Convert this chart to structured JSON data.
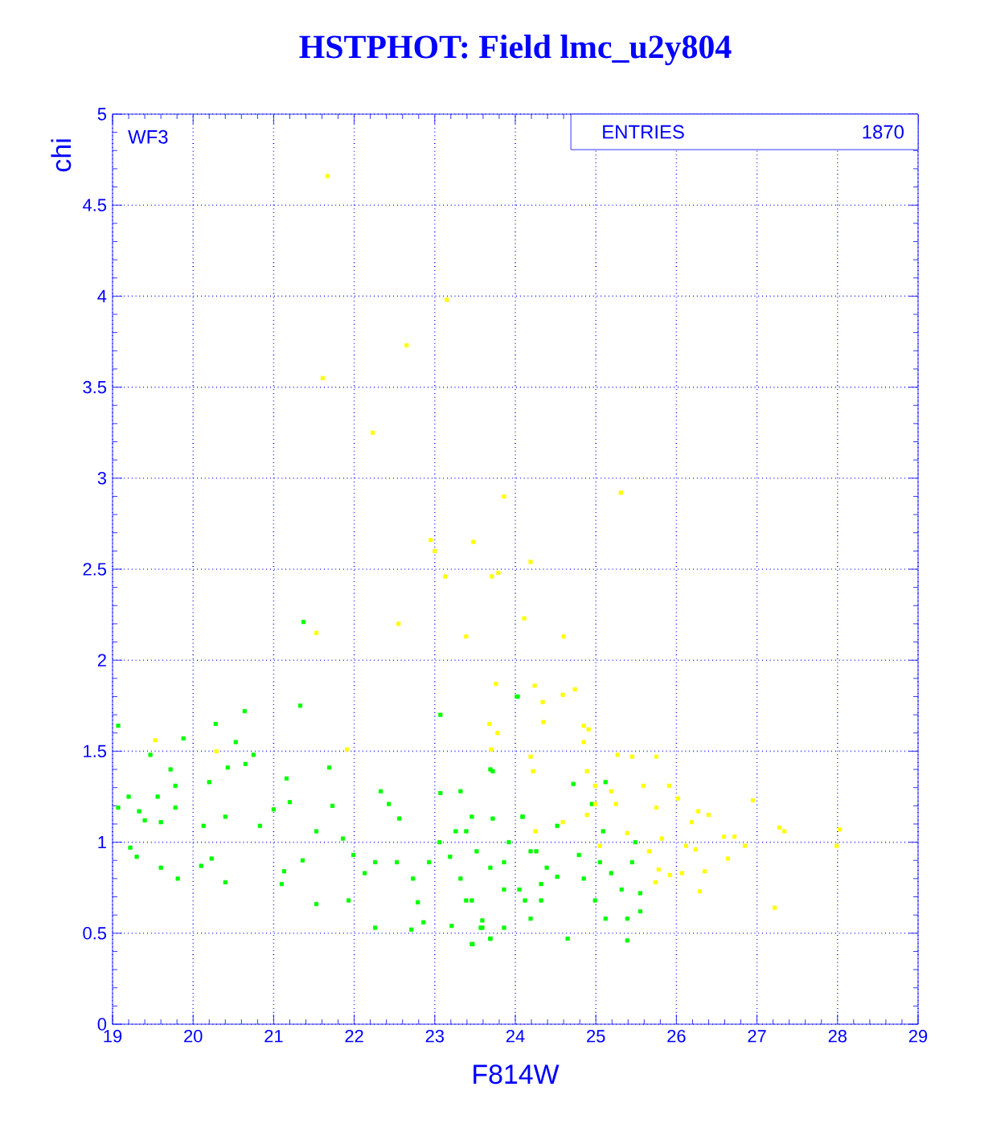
{
  "chart_data": {
    "type": "scatter",
    "title": "HSTPHOT: Field lmc_u2y804",
    "xlabel": "F814W",
    "ylabel": "chi",
    "annotations": [
      "WF3",
      "ENTRIES",
      "1870"
    ],
    "xlim": [
      19,
      29
    ],
    "ylim": [
      0,
      5
    ],
    "xticks": [
      19,
      20,
      21,
      22,
      23,
      24,
      25,
      26,
      27,
      28,
      29
    ],
    "yticks": [
      0,
      0.5,
      1,
      1.5,
      2,
      2.5,
      3,
      3.5,
      4,
      4.5,
      5
    ],
    "grid": true,
    "marker": "square",
    "series": [
      {
        "color": "#00ff00",
        "x": [
          21.37,
          19.07,
          20.64,
          20.28,
          19.88,
          20.53,
          21.33,
          24.03,
          23.07,
          19.47,
          19.2,
          19.33,
          19.56,
          19.78,
          19.4,
          19.6,
          19.78,
          19.72,
          19.22,
          19.3,
          19.81,
          19.6,
          19.07,
          20.2,
          20.43,
          20.65,
          20.13,
          20.4,
          20.23,
          20.4,
          20.1,
          20.83,
          20.75,
          21.0,
          21.16,
          21.2,
          21.13,
          21.1,
          21.36,
          21.53,
          21.69,
          21.73,
          21.86,
          21.93,
          21.99,
          21.53,
          22.33,
          22.43,
          22.26,
          22.13,
          22.26,
          22.56,
          22.53,
          22.73,
          22.71,
          22.79,
          22.93,
          23.06,
          23.07,
          22.86,
          23.21,
          23.32,
          23.32,
          23.46,
          23.59,
          23.47,
          23.57,
          23.69,
          23.72,
          23.69,
          23.86,
          23.92,
          23.72,
          23.39,
          23.19,
          24.09,
          24.12,
          24.26,
          24.32,
          24.02,
          23.69,
          25.12,
          24.72,
          24.95,
          23.26,
          23.46,
          24.09,
          24.52,
          25.09,
          25.49,
          25.45,
          25.55,
          25.55,
          25.39,
          25.39,
          24.65,
          25.12,
          25.19,
          24.85,
          24.52,
          24.32,
          24.19,
          23.86,
          23.59,
          23.46,
          23.69,
          23.39,
          24.05,
          23.86,
          23.52,
          24.19,
          24.79,
          25.05,
          25.32,
          24.99,
          24.39
        ],
        "values": [
          2.21,
          1.64,
          1.72,
          1.65,
          1.57,
          1.55,
          1.75,
          1.8,
          1.7,
          1.48,
          1.25,
          1.17,
          1.25,
          1.19,
          1.12,
          1.11,
          1.31,
          1.4,
          0.97,
          0.92,
          0.8,
          0.86,
          1.19,
          1.33,
          1.41,
          1.43,
          1.09,
          1.14,
          0.91,
          0.78,
          0.87,
          1.09,
          1.48,
          1.18,
          1.35,
          1.22,
          0.84,
          0.77,
          0.9,
          0.66,
          1.41,
          1.2,
          1.02,
          0.68,
          0.93,
          1.06,
          1.28,
          1.21,
          0.89,
          0.83,
          0.53,
          1.13,
          0.89,
          0.8,
          0.52,
          0.67,
          0.89,
          1.0,
          1.27,
          0.56,
          0.54,
          1.28,
          0.8,
          0.68,
          0.57,
          0.44,
          0.53,
          0.47,
          1.13,
          0.86,
          0.74,
          1.0,
          1.39,
          1.06,
          0.92,
          1.14,
          0.68,
          0.95,
          0.77,
          1.8,
          1.4,
          1.33,
          1.32,
          1.21,
          1.06,
          1.14,
          1.14,
          1.09,
          1.06,
          1.0,
          0.89,
          0.72,
          0.62,
          0.58,
          0.46,
          0.47,
          0.58,
          0.83,
          0.8,
          0.81,
          0.68,
          0.58,
          0.53,
          0.53,
          0.44,
          0.47,
          0.68,
          0.74,
          0.89,
          0.95,
          0.95,
          0.93,
          0.89,
          0.74,
          0.68,
          0.86
        ]
      },
      {
        "color": "#ffff00",
        "x": [
          21.67,
          23.15,
          22.65,
          21.61,
          22.23,
          23.86,
          25.31,
          22.95,
          23.48,
          23.0,
          23.13,
          23.71,
          23.79,
          24.19,
          24.11,
          22.55,
          21.53,
          23.39,
          23.76,
          24.24,
          19.53,
          20.29,
          21.91,
          23.68,
          24.19,
          23.7,
          24.6,
          24.74,
          24.59,
          24.34,
          24.35,
          24.85,
          23.78,
          24.91,
          24.85,
          24.22,
          25.27,
          25.45,
          25.75,
          24.89,
          24.99,
          25.19,
          25.59,
          25.91,
          25.25,
          25.75,
          26.02,
          26.95,
          26.27,
          26.19,
          26.4,
          26.59,
          26.72,
          27.28,
          27.34,
          28.03,
          27.99,
          26.85,
          26.64,
          26.35,
          26.29,
          25.92,
          25.78,
          25.74,
          25.66,
          26.12,
          26.24,
          26.07,
          27.22,
          25.39,
          25.82,
          24.89,
          24.59,
          25.05,
          24.25,
          24.99
        ],
        "values": [
          4.66,
          3.98,
          3.73,
          3.55,
          3.25,
          2.9,
          2.92,
          2.66,
          2.65,
          2.6,
          2.46,
          2.46,
          2.48,
          2.54,
          2.23,
          2.2,
          2.15,
          2.13,
          1.87,
          1.86,
          1.56,
          1.5,
          1.51,
          1.65,
          1.47,
          1.51,
          2.13,
          1.84,
          1.81,
          1.77,
          1.66,
          1.64,
          1.6,
          1.62,
          1.55,
          1.39,
          1.48,
          1.47,
          1.47,
          1.39,
          1.31,
          1.28,
          1.31,
          1.31,
          1.21,
          1.19,
          1.24,
          1.23,
          1.17,
          1.11,
          1.15,
          1.03,
          1.03,
          1.08,
          1.06,
          1.07,
          0.98,
          0.98,
          0.91,
          0.84,
          0.73,
          0.82,
          0.85,
          0.78,
          0.95,
          0.98,
          0.96,
          0.83,
          0.64,
          1.05,
          1.02,
          1.15,
          1.11,
          0.98,
          1.06,
          1.21
        ]
      }
    ]
  }
}
